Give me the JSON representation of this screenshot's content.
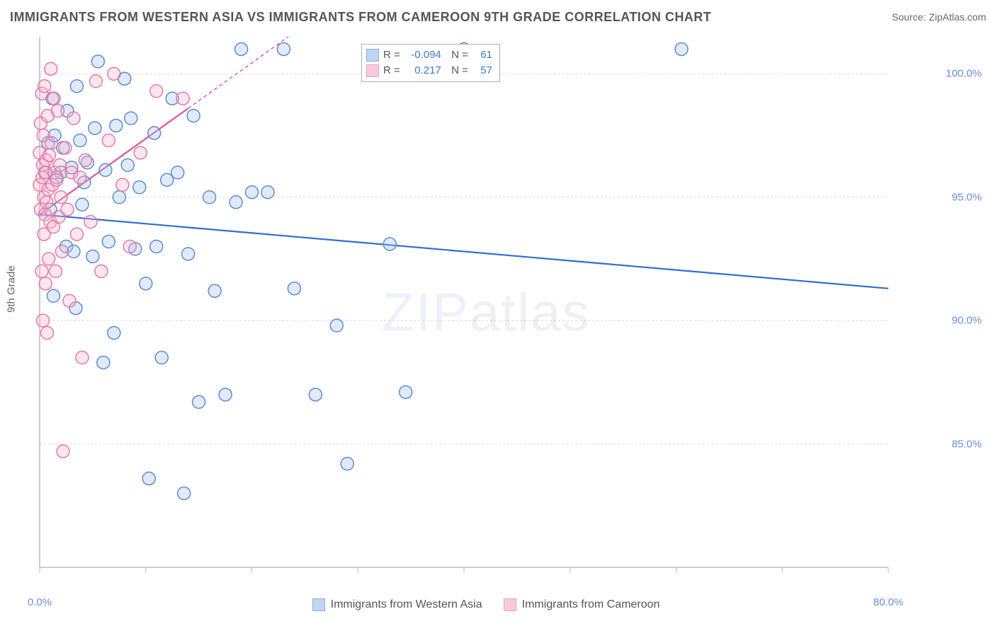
{
  "title": "IMMIGRANTS FROM WESTERN ASIA VS IMMIGRANTS FROM CAMEROON 9TH GRADE CORRELATION CHART",
  "source_label": "Source: ",
  "source_value": "ZipAtlas.com",
  "watermark": {
    "part1": "ZIP",
    "part2": "atlas"
  },
  "chart": {
    "type": "scatter",
    "ylabel": "9th Grade",
    "xlim": [
      0,
      80
    ],
    "ylim": [
      80,
      101.5
    ],
    "xtick_values": [
      0,
      80
    ],
    "xtick_labels": [
      "0.0%",
      "80.0%"
    ],
    "xtick_minor": [
      10,
      20,
      30,
      40,
      50,
      60,
      70
    ],
    "ytick_values": [
      85,
      90,
      95,
      100
    ],
    "ytick_labels": [
      "85.0%",
      "90.0%",
      "95.0%",
      "100.0%"
    ],
    "background_color": "#ffffff",
    "grid_color": "#d8d8d8",
    "axis_color": "#bcbcbc",
    "marker_radius": 9,
    "marker_stroke_width": 1.5,
    "marker_fill_opacity": 0.35,
    "series": [
      {
        "name": "Immigrants from Western Asia",
        "color_stroke": "#5a8dd6",
        "color_fill": "#a8c4ea",
        "r_value": "-0.094",
        "n_value": "61",
        "trend": {
          "x1": 0,
          "y1": 94.3,
          "x2": 80,
          "y2": 91.3,
          "color": "#2f6fd0",
          "width": 2.2,
          "dash": null,
          "ext_dash": null
        },
        "points": [
          [
            0.6,
            96.0
          ],
          [
            0.8,
            97.2
          ],
          [
            1.0,
            94.5
          ],
          [
            1.2,
            99.0
          ],
          [
            1.3,
            91.0
          ],
          [
            1.4,
            97.5
          ],
          [
            1.6,
            95.8
          ],
          [
            2.0,
            96.0
          ],
          [
            2.2,
            97.0
          ],
          [
            2.5,
            93.0
          ],
          [
            2.6,
            98.5
          ],
          [
            3.0,
            96.2
          ],
          [
            3.2,
            92.8
          ],
          [
            3.4,
            90.5
          ],
          [
            3.5,
            99.5
          ],
          [
            3.8,
            97.3
          ],
          [
            4.0,
            94.7
          ],
          [
            4.2,
            95.6
          ],
          [
            4.5,
            96.4
          ],
          [
            5.0,
            92.6
          ],
          [
            5.2,
            97.8
          ],
          [
            5.5,
            100.5
          ],
          [
            6.0,
            88.3
          ],
          [
            6.2,
            96.1
          ],
          [
            6.5,
            93.2
          ],
          [
            7.0,
            89.5
          ],
          [
            7.2,
            97.9
          ],
          [
            7.5,
            95.0
          ],
          [
            8.0,
            99.8
          ],
          [
            8.3,
            96.3
          ],
          [
            8.6,
            98.2
          ],
          [
            9.0,
            92.9
          ],
          [
            9.4,
            95.4
          ],
          [
            10.0,
            91.5
          ],
          [
            10.3,
            83.6
          ],
          [
            10.8,
            97.6
          ],
          [
            11.0,
            93.0
          ],
          [
            11.5,
            88.5
          ],
          [
            12.0,
            95.7
          ],
          [
            12.5,
            99.0
          ],
          [
            13.0,
            96.0
          ],
          [
            13.6,
            83.0
          ],
          [
            14.0,
            92.7
          ],
          [
            14.5,
            98.3
          ],
          [
            15.0,
            86.7
          ],
          [
            16.0,
            95.0
          ],
          [
            16.5,
            91.2
          ],
          [
            17.5,
            87.0
          ],
          [
            18.5,
            94.8
          ],
          [
            19.0,
            101.0
          ],
          [
            20.0,
            95.2
          ],
          [
            21.5,
            95.2
          ],
          [
            23.0,
            101.0
          ],
          [
            24.0,
            91.3
          ],
          [
            26.0,
            87.0
          ],
          [
            28.0,
            89.8
          ],
          [
            29.0,
            84.2
          ],
          [
            33.0,
            93.1
          ],
          [
            34.5,
            87.1
          ],
          [
            40.0,
            101.0
          ],
          [
            60.5,
            101.0
          ]
        ]
      },
      {
        "name": "Immigrants from Cameroon",
        "color_stroke": "#e67aa3",
        "color_fill": "#f4b5cd",
        "r_value": "0.217",
        "n_value": "57",
        "trend": {
          "x1": 0,
          "y1": 94.3,
          "x2": 14,
          "y2": 98.6,
          "color": "#e64588",
          "width": 2,
          "dash": null,
          "ext_to_x": 28,
          "ext_to_y": 102.9,
          "ext_dash": "5 4"
        },
        "points": [
          [
            0.0,
            95.5
          ],
          [
            0.0,
            96.8
          ],
          [
            0.1,
            98.0
          ],
          [
            0.1,
            94.5
          ],
          [
            0.2,
            99.2
          ],
          [
            0.2,
            92.0
          ],
          [
            0.25,
            95.8
          ],
          [
            0.3,
            96.3
          ],
          [
            0.3,
            90.0
          ],
          [
            0.35,
            97.5
          ],
          [
            0.4,
            95.0
          ],
          [
            0.4,
            93.5
          ],
          [
            0.45,
            99.5
          ],
          [
            0.5,
            96.0
          ],
          [
            0.5,
            94.3
          ],
          [
            0.55,
            91.5
          ],
          [
            0.6,
            96.5
          ],
          [
            0.65,
            94.8
          ],
          [
            0.7,
            89.5
          ],
          [
            0.75,
            98.3
          ],
          [
            0.8,
            95.3
          ],
          [
            0.85,
            92.5
          ],
          [
            0.9,
            96.7
          ],
          [
            1.0,
            94.0
          ],
          [
            1.05,
            100.2
          ],
          [
            1.1,
            97.2
          ],
          [
            1.2,
            95.5
          ],
          [
            1.3,
            93.8
          ],
          [
            1.35,
            99.0
          ],
          [
            1.4,
            96.0
          ],
          [
            1.5,
            92.0
          ],
          [
            1.6,
            95.7
          ],
          [
            1.7,
            98.5
          ],
          [
            1.8,
            94.2
          ],
          [
            1.9,
            96.3
          ],
          [
            2.0,
            95.0
          ],
          [
            2.1,
            92.8
          ],
          [
            2.2,
            84.7
          ],
          [
            2.4,
            97.0
          ],
          [
            2.6,
            94.5
          ],
          [
            2.8,
            90.8
          ],
          [
            3.0,
            96.0
          ],
          [
            3.2,
            98.2
          ],
          [
            3.5,
            93.5
          ],
          [
            3.8,
            95.8
          ],
          [
            4.0,
            88.5
          ],
          [
            4.3,
            96.5
          ],
          [
            4.8,
            94.0
          ],
          [
            5.3,
            99.7
          ],
          [
            5.8,
            92.0
          ],
          [
            6.5,
            97.3
          ],
          [
            7.0,
            100.0
          ],
          [
            7.8,
            95.5
          ],
          [
            8.5,
            93.0
          ],
          [
            9.5,
            96.8
          ],
          [
            11.0,
            99.3
          ],
          [
            13.5,
            99.0
          ]
        ]
      }
    ]
  },
  "legend_labels": {
    "r_prefix": "R = ",
    "n_prefix": "N = "
  }
}
